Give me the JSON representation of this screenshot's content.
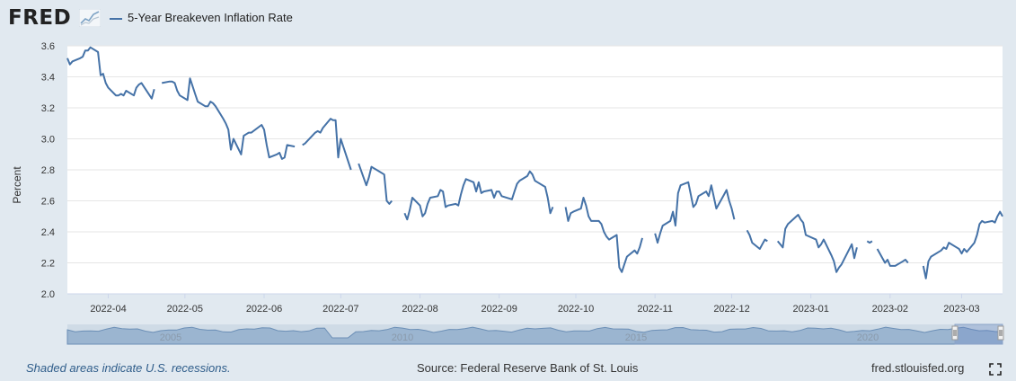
{
  "header": {
    "logo_text": "FRED",
    "logo_icon": "trend-graph-icon",
    "legend_label": "5-Year Breakeven Inflation Rate"
  },
  "footer": {
    "recession_note": "Shaded areas indicate U.S. recessions.",
    "source": "Source: Federal Reserve Bank of St. Louis",
    "site": "fred.stlouisfed.org",
    "fullscreen_icon": "fullscreen-icon"
  },
  "navigator": {
    "year_labels": [
      "2005",
      "2010",
      "2015",
      "2020"
    ]
  },
  "chart_data": {
    "type": "line",
    "title": "",
    "xlabel": "",
    "ylabel": "Percent",
    "ylim": [
      2.0,
      3.6
    ],
    "yticks": [
      2.0,
      2.2,
      2.4,
      2.6,
      2.8,
      3.0,
      3.2,
      3.4,
      3.6
    ],
    "xlim": [
      "2022-03-16",
      "2023-03-17"
    ],
    "xticks": [
      "2022-04",
      "2022-05",
      "2022-06",
      "2022-07",
      "2022-08",
      "2022-09",
      "2022-10",
      "2022-11",
      "2022-12",
      "2023-01",
      "2023-02",
      "2023-03"
    ],
    "grid": true,
    "legend": "top-left",
    "line_color": "#4572a7",
    "series": [
      {
        "name": "5-Year Breakeven Inflation Rate",
        "segments": [
          [
            [
              "2022-03-16",
              3.52
            ],
            [
              "2022-03-17",
              3.48
            ],
            [
              "2022-03-18",
              3.5
            ],
            [
              "2022-03-21",
              3.52
            ],
            [
              "2022-03-22",
              3.53
            ],
            [
              "2022-03-23",
              3.57
            ],
            [
              "2022-03-24",
              3.57
            ],
            [
              "2022-03-25",
              3.59
            ],
            [
              "2022-03-28",
              3.56
            ],
            [
              "2022-03-29",
              3.41
            ],
            [
              "2022-03-30",
              3.42
            ],
            [
              "2022-03-31",
              3.36
            ],
            [
              "2022-04-01",
              3.33
            ],
            [
              "2022-04-04",
              3.28
            ],
            [
              "2022-04-05",
              3.28
            ],
            [
              "2022-04-06",
              3.29
            ],
            [
              "2022-04-07",
              3.28
            ],
            [
              "2022-04-08",
              3.31
            ],
            [
              "2022-04-11",
              3.28
            ],
            [
              "2022-04-12",
              3.33
            ],
            [
              "2022-04-13",
              3.35
            ],
            [
              "2022-04-14",
              3.36
            ],
            [
              "2022-04-18",
              3.26
            ],
            [
              "2022-04-19",
              3.32
            ]
          ],
          [
            [
              "2022-04-22",
              3.36
            ],
            [
              "2022-04-25",
              3.37
            ],
            [
              "2022-04-26",
              3.37
            ],
            [
              "2022-04-27",
              3.36
            ],
            [
              "2022-04-28",
              3.31
            ],
            [
              "2022-04-29",
              3.28
            ],
            [
              "2022-05-02",
              3.25
            ],
            [
              "2022-05-03",
              3.39
            ],
            [
              "2022-05-04",
              3.34
            ],
            [
              "2022-05-05",
              3.29
            ],
            [
              "2022-05-06",
              3.24
            ],
            [
              "2022-05-09",
              3.21
            ],
            [
              "2022-05-10",
              3.21
            ],
            [
              "2022-05-11",
              3.24
            ],
            [
              "2022-05-12",
              3.23
            ],
            [
              "2022-05-13",
              3.21
            ],
            [
              "2022-05-16",
              3.13
            ],
            [
              "2022-05-17",
              3.1
            ],
            [
              "2022-05-18",
              3.06
            ],
            [
              "2022-05-19",
              2.93
            ],
            [
              "2022-05-20",
              3.0
            ],
            [
              "2022-05-23",
              2.9
            ],
            [
              "2022-05-24",
              3.02
            ],
            [
              "2022-05-25",
              3.03
            ],
            [
              "2022-05-26",
              3.04
            ],
            [
              "2022-05-27",
              3.04
            ],
            [
              "2022-05-31",
              3.09
            ],
            [
              "2022-06-01",
              3.06
            ],
            [
              "2022-06-02",
              2.96
            ],
            [
              "2022-06-03",
              2.88
            ],
            [
              "2022-06-06",
              2.9
            ],
            [
              "2022-06-07",
              2.91
            ],
            [
              "2022-06-08",
              2.87
            ],
            [
              "2022-06-09",
              2.88
            ],
            [
              "2022-06-10",
              2.96
            ],
            [
              "2022-06-13",
              2.95
            ]
          ],
          [
            [
              "2022-06-16",
              2.96
            ],
            [
              "2022-06-17",
              2.97
            ],
            [
              "2022-06-21",
              3.04
            ],
            [
              "2022-06-22",
              3.05
            ],
            [
              "2022-06-23",
              3.04
            ],
            [
              "2022-06-24",
              3.07
            ],
            [
              "2022-06-27",
              3.13
            ],
            [
              "2022-06-28",
              3.12
            ],
            [
              "2022-06-29",
              3.12
            ],
            [
              "2022-06-30",
              2.88
            ],
            [
              "2022-07-01",
              3.0
            ],
            [
              "2022-07-05",
              2.8
            ]
          ],
          [
            [
              "2022-07-08",
              2.84
            ],
            [
              "2022-07-11",
              2.7
            ],
            [
              "2022-07-12",
              2.75
            ],
            [
              "2022-07-13",
              2.82
            ],
            [
              "2022-07-14",
              2.81
            ],
            [
              "2022-07-15",
              2.8
            ],
            [
              "2022-07-18",
              2.77
            ],
            [
              "2022-07-19",
              2.6
            ],
            [
              "2022-07-20",
              2.58
            ],
            [
              "2022-07-21",
              2.6
            ]
          ],
          [
            [
              "2022-07-26",
              2.52
            ],
            [
              "2022-07-27",
              2.48
            ],
            [
              "2022-07-28",
              2.54
            ],
            [
              "2022-07-29",
              2.62
            ],
            [
              "2022-08-01",
              2.57
            ],
            [
              "2022-08-02",
              2.5
            ],
            [
              "2022-08-03",
              2.52
            ],
            [
              "2022-08-04",
              2.58
            ],
            [
              "2022-08-05",
              2.62
            ],
            [
              "2022-08-08",
              2.63
            ],
            [
              "2022-08-09",
              2.67
            ],
            [
              "2022-08-10",
              2.66
            ],
            [
              "2022-08-11",
              2.56
            ],
            [
              "2022-08-12",
              2.57
            ],
            [
              "2022-08-15",
              2.58
            ],
            [
              "2022-08-16",
              2.57
            ],
            [
              "2022-08-17",
              2.64
            ],
            [
              "2022-08-18",
              2.7
            ],
            [
              "2022-08-19",
              2.74
            ],
            [
              "2022-08-22",
              2.72
            ],
            [
              "2022-08-23",
              2.66
            ],
            [
              "2022-08-24",
              2.72
            ],
            [
              "2022-08-25",
              2.65
            ],
            [
              "2022-08-26",
              2.66
            ],
            [
              "2022-08-29",
              2.67
            ],
            [
              "2022-08-30",
              2.62
            ],
            [
              "2022-08-31",
              2.66
            ],
            [
              "2022-09-01",
              2.66
            ],
            [
              "2022-09-02",
              2.63
            ],
            [
              "2022-09-06",
              2.61
            ],
            [
              "2022-09-07",
              2.66
            ],
            [
              "2022-09-08",
              2.71
            ],
            [
              "2022-09-09",
              2.73
            ],
            [
              "2022-09-12",
              2.76
            ],
            [
              "2022-09-13",
              2.79
            ],
            [
              "2022-09-14",
              2.77
            ],
            [
              "2022-09-15",
              2.73
            ],
            [
              "2022-09-16",
              2.72
            ],
            [
              "2022-09-19",
              2.69
            ],
            [
              "2022-09-20",
              2.62
            ],
            [
              "2022-09-21",
              2.52
            ],
            [
              "2022-09-22",
              2.56
            ]
          ],
          [
            [
              "2022-09-27",
              2.56
            ],
            [
              "2022-09-28",
              2.47
            ],
            [
              "2022-09-29",
              2.52
            ],
            [
              "2022-09-30",
              2.53
            ],
            [
              "2022-10-03",
              2.55
            ],
            [
              "2022-10-04",
              2.62
            ],
            [
              "2022-10-05",
              2.57
            ],
            [
              "2022-10-06",
              2.5
            ],
            [
              "2022-10-07",
              2.47
            ],
            [
              "2022-10-10",
              2.47
            ],
            [
              "2022-10-11",
              2.45
            ],
            [
              "2022-10-12",
              2.4
            ],
            [
              "2022-10-13",
              2.37
            ],
            [
              "2022-10-14",
              2.35
            ],
            [
              "2022-10-17",
              2.38
            ],
            [
              "2022-10-18",
              2.17
            ],
            [
              "2022-10-19",
              2.14
            ],
            [
              "2022-10-20",
              2.19
            ],
            [
              "2022-10-21",
              2.24
            ],
            [
              "2022-10-24",
              2.28
            ],
            [
              "2022-10-25",
              2.26
            ],
            [
              "2022-10-26",
              2.3
            ],
            [
              "2022-10-27",
              2.36
            ]
          ],
          [
            [
              "2022-11-01",
              2.39
            ],
            [
              "2022-11-02",
              2.33
            ],
            [
              "2022-11-03",
              2.39
            ],
            [
              "2022-11-04",
              2.44
            ],
            [
              "2022-11-07",
              2.47
            ],
            [
              "2022-11-08",
              2.53
            ],
            [
              "2022-11-09",
              2.44
            ],
            [
              "2022-11-10",
              2.65
            ],
            [
              "2022-11-11",
              2.7
            ],
            [
              "2022-11-14",
              2.72
            ],
            [
              "2022-11-15",
              2.64
            ],
            [
              "2022-11-16",
              2.56
            ],
            [
              "2022-11-17",
              2.58
            ],
            [
              "2022-11-18",
              2.63
            ],
            [
              "2022-11-21",
              2.66
            ],
            [
              "2022-11-22",
              2.63
            ],
            [
              "2022-11-23",
              2.7
            ],
            [
              "2022-11-25",
              2.55
            ],
            [
              "2022-11-28",
              2.64
            ],
            [
              "2022-11-29",
              2.67
            ],
            [
              "2022-11-30",
              2.6
            ],
            [
              "2022-12-01",
              2.55
            ],
            [
              "2022-12-02",
              2.48
            ]
          ],
          [
            [
              "2022-12-07",
              2.41
            ],
            [
              "2022-12-08",
              2.38
            ],
            [
              "2022-12-09",
              2.33
            ],
            [
              "2022-12-12",
              2.29
            ],
            [
              "2022-12-13",
              2.32
            ],
            [
              "2022-12-14",
              2.35
            ],
            [
              "2022-12-15",
              2.34
            ]
          ],
          [
            [
              "2022-12-19",
              2.34
            ],
            [
              "2022-12-20",
              2.32
            ],
            [
              "2022-12-21",
              2.3
            ],
            [
              "2022-12-22",
              2.42
            ],
            [
              "2022-12-23",
              2.45
            ],
            [
              "2022-12-27",
              2.51
            ],
            [
              "2022-12-28",
              2.48
            ],
            [
              "2022-12-29",
              2.46
            ],
            [
              "2022-12-30",
              2.38
            ],
            [
              "2023-01-03",
              2.35
            ],
            [
              "2023-01-04",
              2.3
            ],
            [
              "2023-01-05",
              2.32
            ],
            [
              "2023-01-06",
              2.35
            ],
            [
              "2023-01-09",
              2.25
            ],
            [
              "2023-01-10",
              2.21
            ],
            [
              "2023-01-11",
              2.14
            ],
            [
              "2023-01-12",
              2.17
            ],
            [
              "2023-01-13",
              2.19
            ],
            [
              "2023-01-17",
              2.32
            ],
            [
              "2023-01-18",
              2.23
            ],
            [
              "2023-01-19",
              2.3
            ]
          ],
          [
            [
              "2023-01-23",
              2.34
            ],
            [
              "2023-01-24",
              2.33
            ],
            [
              "2023-01-25",
              2.34
            ]
          ],
          [
            [
              "2023-01-27",
              2.29
            ],
            [
              "2023-01-30",
              2.2
            ],
            [
              "2023-01-31",
              2.22
            ],
            [
              "2023-02-01",
              2.18
            ],
            [
              "2023-02-02",
              2.18
            ],
            [
              "2023-02-03",
              2.18
            ],
            [
              "2023-02-06",
              2.21
            ],
            [
              "2023-02-07",
              2.22
            ],
            [
              "2023-02-08",
              2.2
            ]
          ],
          [
            [
              "2023-02-14",
              2.18
            ],
            [
              "2023-02-15",
              2.1
            ],
            [
              "2023-02-16",
              2.21
            ],
            [
              "2023-02-17",
              2.24
            ],
            [
              "2023-02-21",
              2.28
            ],
            [
              "2023-02-22",
              2.3
            ],
            [
              "2023-02-23",
              2.29
            ],
            [
              "2023-02-24",
              2.33
            ],
            [
              "2023-02-27",
              2.3
            ],
            [
              "2023-02-28",
              2.29
            ],
            [
              "2023-03-01",
              2.26
            ],
            [
              "2023-03-02",
              2.29
            ],
            [
              "2023-03-03",
              2.27
            ],
            [
              "2023-03-06",
              2.33
            ],
            [
              "2023-03-07",
              2.38
            ],
            [
              "2023-03-08",
              2.45
            ],
            [
              "2023-03-09",
              2.47
            ],
            [
              "2023-03-10",
              2.46
            ],
            [
              "2023-03-13",
              2.47
            ],
            [
              "2023-03-14",
              2.46
            ],
            [
              "2023-03-15",
              2.5
            ],
            [
              "2023-03-16",
              2.53
            ],
            [
              "2023-03-17",
              2.5
            ]
          ]
        ]
      }
    ]
  }
}
